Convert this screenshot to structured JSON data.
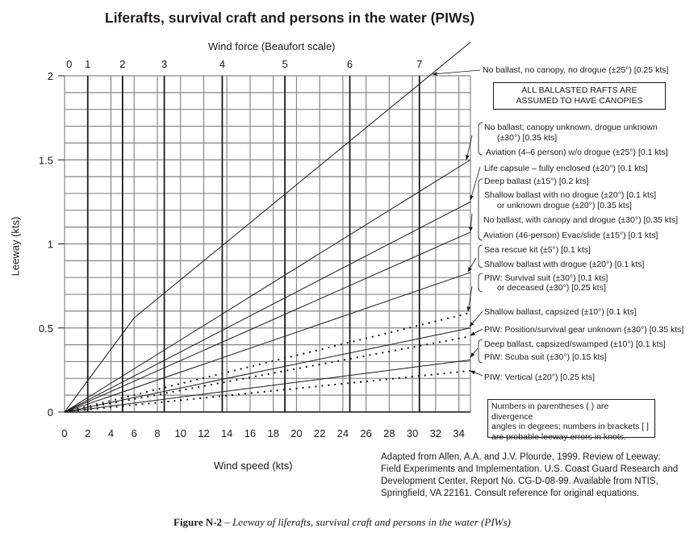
{
  "chart_data": {
    "type": "line",
    "title": "Liferafts, survival craft and persons in the water (PIWs)",
    "xlabel": "Wind speed (kts)",
    "ylabel": "Leeway (kts)",
    "top_axis_label": "Wind force (Beaufort scale)",
    "xlim": [
      0,
      35
    ],
    "ylim": [
      0,
      2
    ],
    "x_ticks": [
      "0",
      "2",
      "4",
      "6",
      "8",
      "10",
      "12",
      "14",
      "16",
      "18",
      "20",
      "22",
      "24",
      "26",
      "28",
      "30",
      "32",
      "34"
    ],
    "y_ticks": [
      "0",
      "0.5",
      "1",
      "1.5",
      "2"
    ],
    "beaufort": [
      {
        "label": "0",
        "wind_kts": 0.4
      },
      {
        "label": "1",
        "wind_kts": 2
      },
      {
        "label": "2",
        "wind_kts": 5
      },
      {
        "label": "3",
        "wind_kts": 8.6
      },
      {
        "label": "4",
        "wind_kts": 13.6
      },
      {
        "label": "5",
        "wind_kts": 19
      },
      {
        "label": "6",
        "wind_kts": 24.6
      },
      {
        "label": "7",
        "wind_kts": 30.6
      }
    ],
    "grid": true,
    "series": [
      {
        "name": "No ballast, no canopy, no drogue",
        "style": "solid",
        "points": [
          [
            0,
            0
          ],
          [
            6,
            0.56
          ],
          [
            35,
            2.2
          ]
        ]
      },
      {
        "name": "No ballast; canopy unknown, drogue unknown / Aviation (4-6 person) w/o drogue",
        "style": "solid",
        "points": [
          [
            0,
            0
          ],
          [
            35,
            1.5
          ]
        ]
      },
      {
        "name": "Life capsule - fully enclosed",
        "style": "solid",
        "points": [
          [
            0,
            0
          ],
          [
            35,
            1.25
          ]
        ]
      },
      {
        "name": "Deep ballast / Shallow ballast no drogue / No ballast with canopy and drogue / Aviation (46-person)",
        "style": "solid",
        "points": [
          [
            0,
            0
          ],
          [
            35,
            1.07
          ]
        ]
      },
      {
        "name": "Sea rescue kit / Shallow ballast with drogue",
        "style": "solid",
        "points": [
          [
            0,
            0
          ],
          [
            35,
            0.83
          ]
        ]
      },
      {
        "name": "PIW: Survival suit or deceased",
        "style": "dotted",
        "points": [
          [
            0,
            0
          ],
          [
            35,
            0.59
          ]
        ]
      },
      {
        "name": "Shallow ballast, capsized",
        "style": "solid",
        "points": [
          [
            0,
            0
          ],
          [
            35,
            0.5
          ]
        ]
      },
      {
        "name": "PIW: Position/survival gear unknown",
        "style": "dotted",
        "points": [
          [
            0,
            0
          ],
          [
            35,
            0.45
          ]
        ]
      },
      {
        "name": "Deep ballast, capsized/swamped / PIW: Scuba suit",
        "style": "solid",
        "points": [
          [
            0,
            0
          ],
          [
            35,
            0.31
          ]
        ]
      },
      {
        "name": "PIW: Vertical",
        "style": "dotted",
        "points": [
          [
            0,
            0
          ],
          [
            35,
            0.245
          ]
        ]
      }
    ],
    "annotations": [
      "No ballast, no canopy, no drogue (±25°) [0.25 kts]",
      "No ballast; canopy unknown, drogue unknown",
      "(±30°) [0.35 kts]",
      "Aviation (4–6 person) w/o drogue (±25°) [0.1 kts]",
      "Life capsule – fully enclosed (±20°) [0.1 kts]",
      "Deep ballast (±15°) [0.2 kts]",
      "Shallow ballast with no drogue (±20°) [0.1 kts]",
      "or unknown drogue (±20°) [0.35 kts]",
      "No ballast, with canopy and drogue (±30°) [0.35 kts]",
      "Aviation (46-person) Evac/slide (±15°) [0.1 kts]",
      "Sea rescue kit (±5°) [0.1 kts]",
      "Shallow ballast with drogue (±20°) [0.1 kts]",
      "PIW: Survival suit (±30°) [0.1 kts]",
      "or deceased (±30°) [0.25 kts]",
      "Shallow ballast, capsized (±10°) [0.1 kts]",
      "PIW: Position/survival gear unknown (±30°) [0.35 kts]",
      "Deep ballast, capsized/swamped (±10°) [0.1 kts]",
      "PIW: Scuba suit (±30°) [0.15 kts]",
      "PIW: Vertical (±20°) [0.25 kts]"
    ],
    "box_ballasted": [
      "ALL BALLASTED RAFTS ARE",
      "ASSUMED TO HAVE CANOPIES"
    ],
    "box_notes": [
      "Numbers in parentheses ( ) are divergence",
      "angles in degrees; numbers in brackets [ ]",
      "are probable leeway errors in knots."
    ]
  },
  "citation": "Adapted from Allen, A.A. and J.V. Plourde, 1999. Review of Leeway: Field Experiments and Implementation. U.S. Coast Guard Research and Development Center. Report No. CG-D-08-99. Available from NTIS, Springfield, VA 22161. Consult reference for original equations.",
  "caption": {
    "label": "Figure N-2",
    "text": " – Leeway of liferafts, survival craft and persons in the water (PIWs)"
  }
}
